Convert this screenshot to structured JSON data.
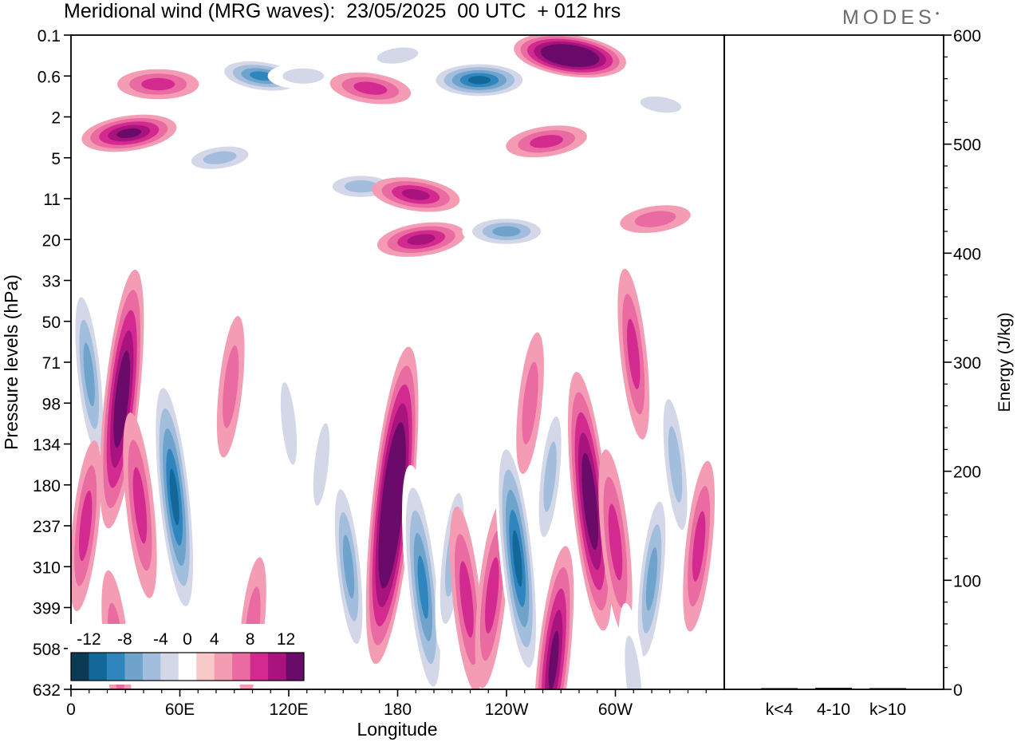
{
  "header": {
    "title": "Meridional wind (MRG waves):  23/05/2025  00 UTC  + 012 hrs",
    "logo": "MODES"
  },
  "chart_data": [
    {
      "type": "heatmap",
      "title": "Meridional wind (MRG waves):  23/05/2025  00 UTC  + 012 hrs",
      "xlabel": "Longitude",
      "ylabel": "Pressure levels (hPa)",
      "x_ticks": [
        "0",
        "60E",
        "120E",
        "180",
        "120W",
        "60W"
      ],
      "x_tick_values": [
        0,
        60,
        120,
        180,
        240,
        300
      ],
      "xlim": [
        0,
        360
      ],
      "y_ticks": [
        "0.1",
        "0.6",
        "2",
        "5",
        "11",
        "20",
        "33",
        "50",
        "71",
        "98",
        "134",
        "180",
        "237",
        "310",
        "399",
        "508",
        "632"
      ],
      "colorbar": {
        "labels": [
          "-12",
          "-8",
          "-4",
          "0",
          "4",
          "8",
          "12"
        ],
        "levels": [
          -14,
          -12,
          -10,
          -8,
          -6,
          -4,
          -2,
          2,
          4,
          6,
          8,
          10,
          12,
          14
        ],
        "colors": [
          "#0b3a55",
          "#13689a",
          "#2f86be",
          "#6fa3cc",
          "#a3bedd",
          "#d3d7e8",
          "#ffffff",
          "#f9c8c8",
          "#f59cb5",
          "#ea6aa2",
          "#d32a8f",
          "#a8137e",
          "#6a0b6a"
        ]
      },
      "features": [
        {
          "lon": 32,
          "lev": 2.4,
          "value": 10
        },
        {
          "lon": 48,
          "lev": 1.2,
          "value": 6
        },
        {
          "lon": 105,
          "lev": 1.0,
          "value": -9
        },
        {
          "lon": 82,
          "lev": 3.0,
          "value": -6
        },
        {
          "lon": 128,
          "lev": 1.0,
          "value": -3
        },
        {
          "lon": 165,
          "lev": 1.3,
          "value": 6
        },
        {
          "lon": 180,
          "lev": 0.5,
          "value": -3
        },
        {
          "lon": 225,
          "lev": 1.1,
          "value": -12
        },
        {
          "lon": 275,
          "lev": 0.5,
          "value": 15
        },
        {
          "lon": 262,
          "lev": 2.6,
          "value": 6
        },
        {
          "lon": 160,
          "lev": 3.7,
          "value": -6
        },
        {
          "lon": 190,
          "lev": 3.9,
          "value": 8
        },
        {
          "lon": 193,
          "lev": 5.0,
          "value": 8
        },
        {
          "lon": 240,
          "lev": 4.8,
          "value": -8
        },
        {
          "lon": 325,
          "lev": 1.7,
          "value": -3
        },
        {
          "lon": 322,
          "lev": 4.5,
          "value": 3
        },
        {
          "lon": 10,
          "lev": 8.3,
          "value": -7
        },
        {
          "lon": 28,
          "lev": 8.9,
          "value": 11
        },
        {
          "lon": 38,
          "lev": 11.5,
          "value": 6
        },
        {
          "lon": 8,
          "lev": 12.0,
          "value": 5
        },
        {
          "lon": 57,
          "lev": 11.3,
          "value": -11
        },
        {
          "lon": 88,
          "lev": 8.6,
          "value": 3
        },
        {
          "lon": 120,
          "lev": 9.5,
          "value": -3
        },
        {
          "lon": 138,
          "lev": 10.5,
          "value": -3
        },
        {
          "lon": 153,
          "lev": 13.0,
          "value": -7
        },
        {
          "lon": 177,
          "lev": 11.5,
          "value": 15
        },
        {
          "lon": 194,
          "lev": 13.5,
          "value": -10
        },
        {
          "lon": 210,
          "lev": 12.8,
          "value": -6
        },
        {
          "lon": 218,
          "lev": 13.8,
          "value": 6
        },
        {
          "lon": 232,
          "lev": 13.7,
          "value": 6
        },
        {
          "lon": 246,
          "lev": 12.8,
          "value": -11
        },
        {
          "lon": 253,
          "lev": 9.0,
          "value": 3
        },
        {
          "lon": 286,
          "lev": 11.4,
          "value": 11
        },
        {
          "lon": 264,
          "lev": 10.8,
          "value": -5
        },
        {
          "lon": 300,
          "lev": 12.4,
          "value": 6
        },
        {
          "lon": 320,
          "lev": 13.3,
          "value": -7
        },
        {
          "lon": 333,
          "lev": 10.5,
          "value": -6
        },
        {
          "lon": 346,
          "lev": 12.5,
          "value": 5
        },
        {
          "lon": 310,
          "lev": 7.8,
          "value": 5
        },
        {
          "lon": 266,
          "lev": 15.3,
          "value": 9
        },
        {
          "lon": 310,
          "lev": 15.8,
          "value": -4
        },
        {
          "lon": 100,
          "lev": 14.5,
          "value": 3
        },
        {
          "lon": 25,
          "lev": 15.0,
          "value": 4
        }
      ]
    },
    {
      "type": "bar",
      "ylabel": "Energy (J/kg)",
      "categories": [
        "k<4",
        "4-10",
        "k>10"
      ],
      "values": [
        0,
        1,
        0
      ],
      "ylim": [
        0,
        600
      ],
      "y_ticks": [
        "0",
        "100",
        "200",
        "300",
        "400",
        "500",
        "600"
      ]
    }
  ]
}
